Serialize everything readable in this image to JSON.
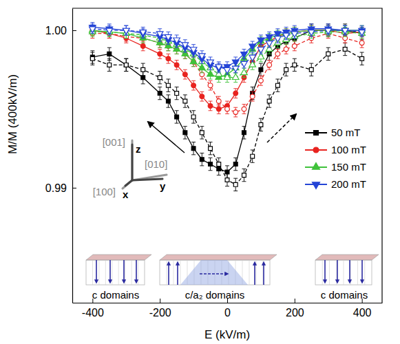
{
  "chart_data": {
    "type": "line",
    "x_label": "E (kV/m)",
    "y_label": "M/M (400kV/m)",
    "xlim": [
      -460,
      460
    ],
    "ylim": [
      0.9827,
      1.0014
    ],
    "xticks": [
      -400,
      -200,
      0,
      200,
      400
    ],
    "yticks": [
      0.99,
      {
        "value": 1,
        "label": "1.00"
      }
    ],
    "legend": "upper right",
    "x": [
      -400,
      -350,
      -300,
      -250,
      -200,
      -175,
      -150,
      -125,
      -100,
      -75,
      -50,
      -25,
      0,
      25,
      50,
      75,
      100,
      125,
      150,
      175,
      200,
      250,
      300,
      350,
      400
    ],
    "series": [
      {
        "name": "50 mT",
        "color": "#000000",
        "marker": "square",
        "line_style": "solid",
        "values": [
          0.9983,
          0.9985,
          0.9978,
          0.997,
          0.996,
          0.9955,
          0.9945,
          0.9935,
          0.9925,
          0.9918,
          0.9915,
          0.9912,
          0.991,
          0.9915,
          0.9935,
          0.996,
          0.9975,
          0.9985,
          0.999,
          0.9993,
          0.9995,
          1.0,
          1.0,
          1.0,
          0.9998
        ],
        "errors": [
          0.0004,
          0.0004,
          0.0004,
          0.0004,
          0.0004,
          0.0004,
          0.0004,
          0.0004,
          0.0004,
          0.0004,
          0.0004,
          0.0004,
          0.0004,
          0.0004,
          0.0004,
          0.0004,
          0.0004,
          0.0004,
          0.0004,
          0.0004,
          0.0004,
          0.0004,
          0.0004,
          0.0004,
          0.0004
        ]
      },
      {
        "color": "#000000",
        "marker": "square-open",
        "line_style": "dashed",
        "values": [
          0.9982,
          0.9978,
          0.9978,
          0.9975,
          0.997,
          0.9965,
          0.996,
          0.9955,
          0.9945,
          0.9935,
          0.9925,
          0.9915,
          0.9905,
          0.9902,
          0.9908,
          0.992,
          0.994,
          0.9955,
          0.9965,
          0.9975,
          0.9978,
          0.9975,
          0.9985,
          0.9988,
          0.9982
        ],
        "errors": [
          0.0004,
          0.0004,
          0.0004,
          0.0004,
          0.0004,
          0.0004,
          0.0004,
          0.0004,
          0.0004,
          0.0004,
          0.0004,
          0.0004,
          0.0004,
          0.0004,
          0.0004,
          0.0004,
          0.0004,
          0.0004,
          0.0004,
          0.0004,
          0.0004,
          0.0004,
          0.0004,
          0.0004,
          0.0004
        ]
      },
      {
        "name": "100 mT",
        "color": "#e8231f",
        "marker": "circle",
        "line_style": "solid",
        "values": [
          1.0,
          0.9998,
          0.9995,
          0.999,
          0.9985,
          0.9982,
          0.9978,
          0.9972,
          0.9965,
          0.9958,
          0.9952,
          0.995,
          0.9952,
          0.996,
          0.997,
          0.998,
          0.999,
          0.9993,
          0.9996,
          0.9998,
          0.9999,
          1.0,
          1.0,
          0.9998,
          0.9999
        ],
        "errors": [
          0.0003,
          0.0003,
          0.0003,
          0.0003,
          0.0003,
          0.0003,
          0.0003,
          0.0003,
          0.0003,
          0.0003,
          0.0003,
          0.0003,
          0.0003,
          0.0003,
          0.0003,
          0.0003,
          0.0003,
          0.0003,
          0.0003,
          0.0003,
          0.0003,
          0.0003,
          0.0003,
          0.0003,
          0.0003
        ]
      },
      {
        "color": "#e8231f",
        "marker": "circle-open",
        "line_style": "dashed",
        "values": [
          0.9998,
          0.9998,
          0.9996,
          0.9995,
          0.9992,
          0.999,
          0.9988,
          0.9985,
          0.998,
          0.9972,
          0.9965,
          0.9955,
          0.995,
          0.9948,
          0.995,
          0.9958,
          0.9968,
          0.9978,
          0.9985,
          0.9988,
          0.999,
          0.9995,
          0.9998,
          0.9995,
          0.9992
        ],
        "errors": [
          0.0003,
          0.0003,
          0.0003,
          0.0003,
          0.0003,
          0.0003,
          0.0003,
          0.0003,
          0.0003,
          0.0003,
          0.0003,
          0.0003,
          0.0003,
          0.0003,
          0.0003,
          0.0003,
          0.0003,
          0.0003,
          0.0003,
          0.0003,
          0.0003,
          0.0003,
          0.0003,
          0.0003,
          0.0003
        ]
      },
      {
        "name": "150 mT",
        "color": "#3fc23a",
        "marker": "triangle-up",
        "line_style": "solid",
        "values": [
          1.0,
          0.9999,
          0.9998,
          0.9995,
          0.9992,
          0.999,
          0.9988,
          0.9985,
          0.998,
          0.9976,
          0.9972,
          0.997,
          0.9972,
          0.9976,
          0.9982,
          0.9988,
          0.9993,
          0.9995,
          0.9997,
          0.9998,
          0.9999,
          1.0,
          1.0,
          1.0,
          1.0
        ],
        "errors": [
          0.0003,
          0.0003,
          0.0003,
          0.0003,
          0.0003,
          0.0003,
          0.0003,
          0.0003,
          0.0003,
          0.0003,
          0.0003,
          0.0003,
          0.0003,
          0.0003,
          0.0003,
          0.0003,
          0.0003,
          0.0003,
          0.0003,
          0.0003,
          0.0003,
          0.0003,
          0.0003,
          0.0003,
          0.0003
        ]
      },
      {
        "color": "#3fc23a",
        "marker": "triangle-up-open",
        "line_style": "dashed",
        "values": [
          0.9999,
          0.9999,
          0.9998,
          0.9997,
          0.9995,
          0.9993,
          0.9991,
          0.9988,
          0.9985,
          0.998,
          0.9976,
          0.9972,
          0.997,
          0.997,
          0.9973,
          0.9978,
          0.9983,
          0.9988,
          0.9992,
          0.9994,
          0.9996,
          0.9998,
          0.9999,
          0.9999,
          0.9998
        ],
        "errors": [
          0.0003,
          0.0003,
          0.0003,
          0.0003,
          0.0003,
          0.0003,
          0.0003,
          0.0003,
          0.0003,
          0.0003,
          0.0003,
          0.0003,
          0.0003,
          0.0003,
          0.0003,
          0.0003,
          0.0003,
          0.0003,
          0.0003,
          0.0003,
          0.0003,
          0.0003,
          0.0003,
          0.0003,
          0.0003
        ]
      },
      {
        "name": "200 mT",
        "color": "#2444d6",
        "marker": "triangle-down",
        "line_style": "solid",
        "values": [
          1.0002,
          1.0001,
          1.0,
          0.9998,
          0.9996,
          0.9994,
          0.9992,
          0.9989,
          0.9986,
          0.9982,
          0.9978,
          0.9976,
          0.9977,
          0.998,
          0.9985,
          0.999,
          0.9994,
          0.9996,
          0.9998,
          0.9999,
          1.0,
          1.0001,
          1.0001,
          1.0,
          1.0
        ],
        "errors": [
          0.0003,
          0.0003,
          0.0003,
          0.0003,
          0.0003,
          0.0003,
          0.0003,
          0.0003,
          0.0003,
          0.0003,
          0.0003,
          0.0003,
          0.0003,
          0.0003,
          0.0003,
          0.0003,
          0.0003,
          0.0003,
          0.0003,
          0.0003,
          0.0003,
          0.0003,
          0.0003,
          0.0003,
          0.0003
        ]
      },
      {
        "color": "#2444d6",
        "marker": "triangle-down-open",
        "line_style": "dashed",
        "values": [
          1.0001,
          1.0,
          1.0,
          0.9999,
          0.9998,
          0.9996,
          0.9994,
          0.9991,
          0.9988,
          0.9984,
          0.998,
          0.9977,
          0.9975,
          0.9976,
          0.9979,
          0.9983,
          0.9988,
          0.9992,
          0.9995,
          0.9997,
          0.9998,
          0.9999,
          1.0,
          1.0,
          0.9999
        ],
        "errors": [
          0.0003,
          0.0003,
          0.0003,
          0.0003,
          0.0003,
          0.0003,
          0.0003,
          0.0003,
          0.0003,
          0.0003,
          0.0003,
          0.0003,
          0.0003,
          0.0003,
          0.0003,
          0.0003,
          0.0003,
          0.0003,
          0.0003,
          0.0003,
          0.0003,
          0.0003,
          0.0003,
          0.0003,
          0.0003
        ]
      }
    ],
    "annotations": [
      "c domains",
      "c/a₂ domains",
      "c domains",
      "[001]",
      "[100]",
      "[010]",
      "z",
      "x",
      "y"
    ]
  }
}
